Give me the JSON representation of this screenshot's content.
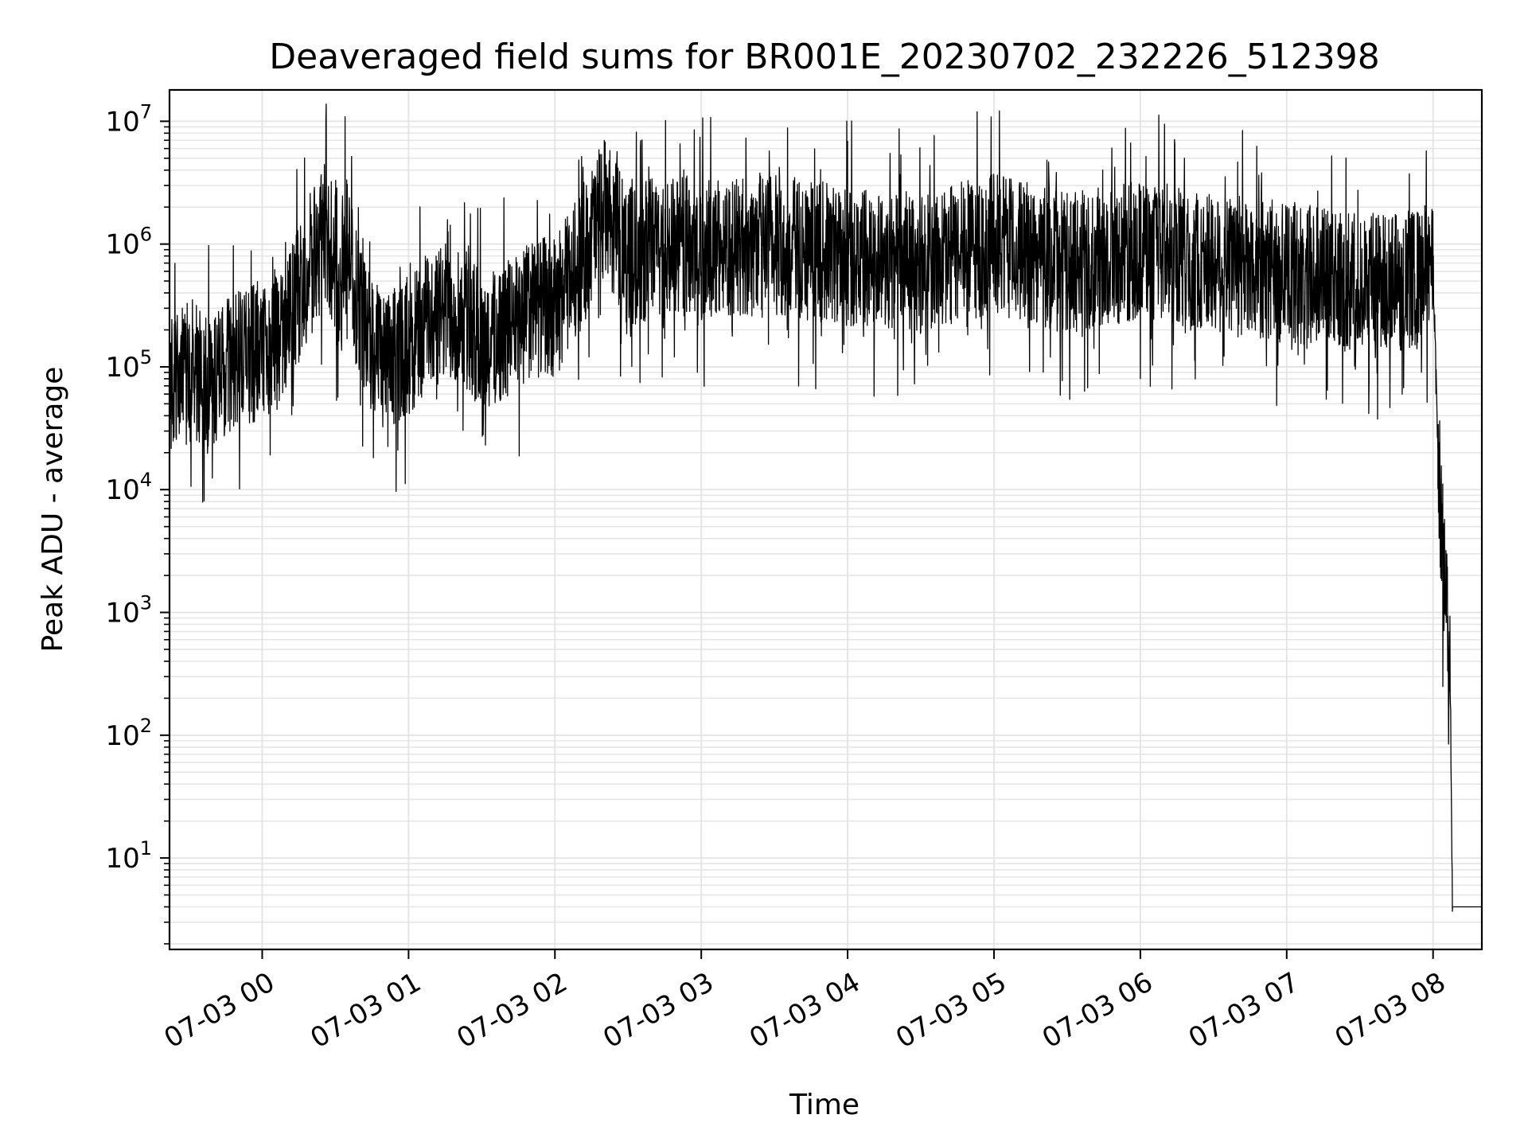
{
  "chart_data": {
    "type": "line",
    "title": "Deaveraged field sums for BR001E_20230702_232226_512398",
    "xlabel": "Time",
    "ylabel": "Peak ADU - average",
    "yscale": "log",
    "ylim": [
      1.8,
      18000000
    ],
    "xlim": [
      "2023-07-02 23:22",
      "2023-07-03 08:20"
    ],
    "grid": true,
    "color": "#000000",
    "x_ticks": [
      "07-03 00",
      "07-03 01",
      "07-03 02",
      "07-03 03",
      "07-03 04",
      "07-03 05",
      "07-03 06",
      "07-03 07",
      "07-03 08"
    ],
    "y_ticks": [
      {
        "base": "10",
        "exp": "1",
        "value": 10
      },
      {
        "base": "10",
        "exp": "2",
        "value": 100
      },
      {
        "base": "10",
        "exp": "3",
        "value": 1000
      },
      {
        "base": "10",
        "exp": "4",
        "value": 10000
      },
      {
        "base": "10",
        "exp": "5",
        "value": 100000
      },
      {
        "base": "10",
        "exp": "6",
        "value": 1000000
      },
      {
        "base": "10",
        "exp": "7",
        "value": 10000000
      }
    ],
    "series": [
      {
        "x": [
          "2023-07-02 23:22",
          "2023-07-02 23:30",
          "2023-07-02 23:40",
          "2023-07-02 23:50",
          "2023-07-03 00:00",
          "2023-07-03 00:10",
          "2023-07-03 00:20",
          "2023-07-03 00:26",
          "2023-07-03 00:30",
          "2023-07-03 00:35",
          "2023-07-03 00:40",
          "2023-07-03 00:50",
          "2023-07-03 01:00",
          "2023-07-03 01:10",
          "2023-07-03 01:20",
          "2023-07-03 01:30",
          "2023-07-03 01:40",
          "2023-07-03 01:50",
          "2023-07-03 02:00",
          "2023-07-03 02:10",
          "2023-07-03 02:20",
          "2023-07-03 02:30",
          "2023-07-03 02:45",
          "2023-07-03 03:00",
          "2023-07-03 03:30",
          "2023-07-03 04:00",
          "2023-07-03 04:30",
          "2023-07-03 05:00",
          "2023-07-03 05:30",
          "2023-07-03 06:00",
          "2023-07-03 06:30",
          "2023-07-03 07:00",
          "2023-07-03 07:20",
          "2023-07-03 07:40",
          "2023-07-03 07:55",
          "2023-07-03 08:00",
          "2023-07-03 08:02",
          "2023-07-03 08:04",
          "2023-07-03 08:06",
          "2023-07-03 08:07",
          "2023-07-03 08:08",
          "2023-07-03 08:20"
        ],
        "y": [
          70000,
          90000,
          80000,
          110000,
          130000,
          200000,
          800000,
          1500000,
          400000,
          1000000,
          250000,
          100000,
          150000,
          250000,
          300000,
          150000,
          200000,
          300000,
          300000,
          700000,
          2000000,
          800000,
          1000000,
          900000,
          1000000,
          800000,
          700000,
          1000000,
          700000,
          900000,
          700000,
          600000,
          500000,
          500000,
          500000,
          700000,
          20000,
          3000,
          800,
          300,
          4,
          4
        ]
      }
    ]
  }
}
